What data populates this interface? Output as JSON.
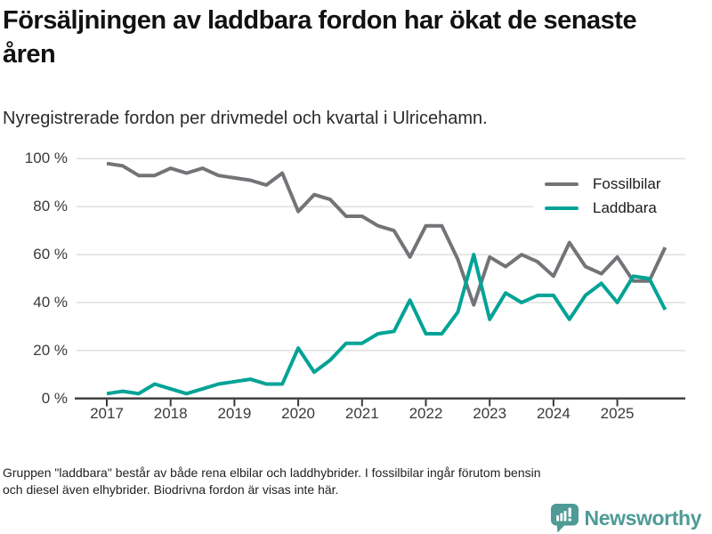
{
  "header": {
    "title": "Försäljningen av laddbara fordon har ökat de senaste åren",
    "subtitle": "Nyregistrerade fordon per drivmedel och kvartal i Ulricehamn."
  },
  "chart_data": {
    "type": "line",
    "title": "Försäljningen av laddbara fordon har ökat de senaste åren",
    "subtitle": "Nyregistrerade fordon per drivmedel och kvartal i Ulricehamn.",
    "x": [
      "2017Q1",
      "2017Q2",
      "2017Q3",
      "2017Q4",
      "2018Q1",
      "2018Q2",
      "2018Q3",
      "2018Q4",
      "2019Q1",
      "2019Q2",
      "2019Q3",
      "2019Q4",
      "2020Q1",
      "2020Q2",
      "2020Q3",
      "2020Q4",
      "2021Q1",
      "2021Q2",
      "2021Q3",
      "2021Q4",
      "2022Q1",
      "2022Q2",
      "2022Q3",
      "2022Q4",
      "2023Q1",
      "2023Q2",
      "2023Q3",
      "2023Q4",
      "2024Q1",
      "2024Q2",
      "2024Q3",
      "2024Q4",
      "2025Q1",
      "2025Q2",
      "2025Q3",
      "2025Q4"
    ],
    "series": [
      {
        "name": "Fossilbilar",
        "color": "#727477",
        "values": [
          98,
          97,
          93,
          93,
          96,
          94,
          96,
          93,
          92,
          91,
          89,
          94,
          78,
          85,
          83,
          76,
          76,
          72,
          70,
          59,
          72,
          72,
          58,
          39,
          59,
          55,
          60,
          57,
          51,
          65,
          55,
          52,
          59,
          49,
          49,
          63
        ]
      },
      {
        "name": "Laddbara",
        "color": "#00a396",
        "values": [
          2,
          3,
          2,
          6,
          4,
          2,
          4,
          6,
          7,
          8,
          6,
          6,
          21,
          11,
          16,
          23,
          23,
          27,
          28,
          41,
          27,
          27,
          36,
          60,
          33,
          44,
          40,
          43,
          43,
          33,
          43,
          48,
          40,
          51,
          50,
          37
        ]
      }
    ],
    "ylim": [
      0,
      100
    ],
    "yticks": [
      "0 %",
      "20 %",
      "40 %",
      "60 %",
      "80 %",
      "100 %"
    ],
    "xticks": [
      "2017",
      "2018",
      "2019",
      "2020",
      "2021",
      "2022",
      "2023",
      "2024",
      "2025"
    ],
    "ylabel": "",
    "xlabel": "",
    "y_unit": "percent",
    "grid": true,
    "legend_position": "top-right",
    "grid_color": "#dcdcdc",
    "axis_color": "#3a3a3a"
  },
  "footer": {
    "note_line1": "Gruppen \"laddbara\" består av både rena elbilar och laddhybrider. I fossilbilar ingår förutom bensin",
    "note_line2": "och diesel även elhybrider. Biodrivna fordon är visas inte här.",
    "brand": "Newsworthy",
    "brand_color": "#4e9b96"
  }
}
